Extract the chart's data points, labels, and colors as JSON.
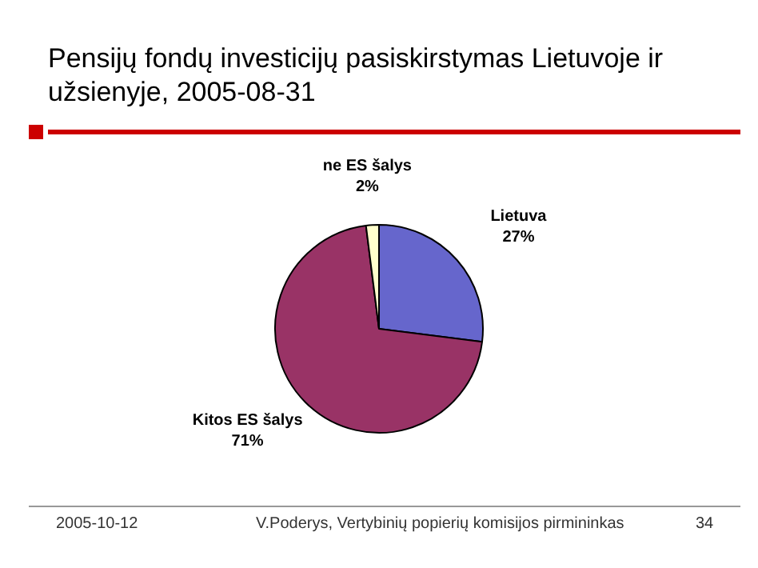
{
  "chart_data": {
    "type": "pie",
    "title": "Pensijų fondų investicijų pasiskirstymas Lietuvoje ir užsienyje, 2005-08-31",
    "categories": [
      "Lietuva",
      "Kitos ES šalys",
      "ne ES šalys"
    ],
    "values": [
      27,
      71,
      2
    ],
    "colors": [
      "#6666cc",
      "#993366",
      "#ffffcc"
    ],
    "value_labels": [
      "27%",
      "71%",
      "2%"
    ],
    "legend": false,
    "annotations": [
      "2005-10-12",
      "V.Poderys, Vertybinių popierių komisijos pirmininkas",
      "34"
    ]
  }
}
